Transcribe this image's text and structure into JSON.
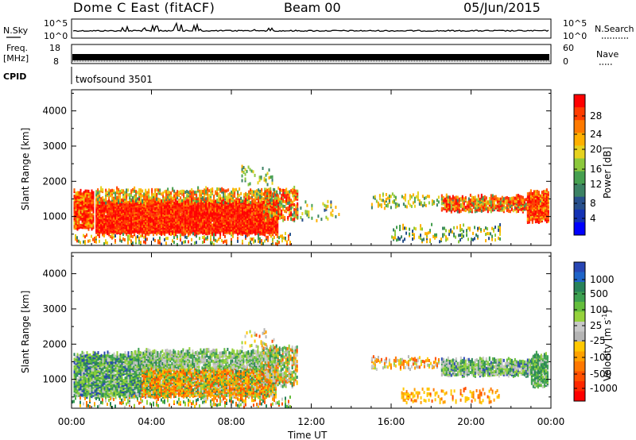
{
  "header": {
    "title": "Dome C East (fitACF)",
    "beam": "Beam 00",
    "date": "05/Jun/2015"
  },
  "strips": {
    "nsky_label": "N.Sky",
    "nsky_ticks": [
      "10^5",
      "10^0"
    ],
    "nsearch_label": "N.Search",
    "nsearch_ticks": [
      "10^5",
      "10^0"
    ],
    "freq_label": "Freq.",
    "freq_unit": "[MHz]",
    "freq_ticks": [
      "18",
      "8"
    ],
    "nave_label": "Nave",
    "nave_ticks": [
      "60",
      "0"
    ],
    "cpid_label": "CPID",
    "cpid_value": "twofsound 3501"
  },
  "chart_data": [
    {
      "type": "heatmap",
      "name": "power",
      "ylabel": "Slant Range [km]",
      "y_ticks": [
        1000,
        2000,
        3000,
        4000
      ],
      "ylim": [
        180,
        4600
      ],
      "xlim": [
        0,
        24
      ],
      "x_ticks": [
        "00:00",
        "04:00",
        "08:00",
        "12:00",
        "16:00",
        "20:00",
        "00:00"
      ],
      "colorbar_label": "Power [dB]",
      "colorbar_ticks": [
        "28",
        "24",
        "20",
        "16",
        "12",
        "8",
        "4"
      ],
      "colorbar_colors": [
        "#ff0000",
        "#ff3c00",
        "#ff7a00",
        "#ffb000",
        "#e6d21e",
        "#8cc83c",
        "#46a050",
        "#3c8264",
        "#28508c",
        "#1432b4",
        "#0000ff"
      ]
    },
    {
      "type": "heatmap",
      "name": "velocity",
      "ylabel": "Slant Range [km]",
      "y_ticks": [
        1000,
        2000,
        3000,
        4000
      ],
      "ylim": [
        180,
        4600
      ],
      "xlim": [
        0,
        24
      ],
      "x_ticks": [
        "00:00",
        "04:00",
        "08:00",
        "12:00",
        "16:00",
        "20:00",
        "00:00"
      ],
      "xlabel": "Time UT",
      "colorbar_label": "Velocity [m s",
      "colorbar_unit_sup": "-1",
      "colorbar_ticks": [
        "1000",
        "500",
        "100",
        "25",
        "-25",
        "-100",
        "-500",
        "-1000"
      ],
      "colorbar_colors": [
        "#2846b4",
        "#1e64c8",
        "#28825a",
        "#3ca050",
        "#64be3c",
        "#96d23c",
        "#c8c8c8",
        "#b4b4b4",
        "#ffc800",
        "#ffa000",
        "#ff7800",
        "#ff5000",
        "#ff2800",
        "#ff0000"
      ]
    }
  ]
}
